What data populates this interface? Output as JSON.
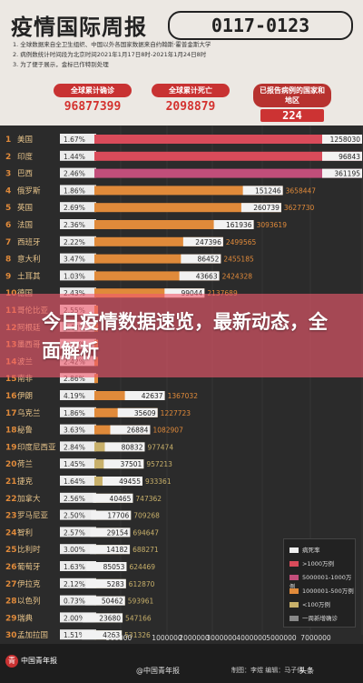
{
  "header": {
    "title": "疫情国际周报",
    "date_range": "0117-0123",
    "notes": [
      "1. 全球数据来自全卫生组织、中国以外各国家数据来自约翰斯·霍普金斯大学",
      "2. 病例数统计时间段为北京时间2021年1月17日8时-2021年1月24日8时",
      "3. 为了便于展示，金标已作特别处理"
    ]
  },
  "stats": [
    {
      "label": "全球累计确诊",
      "value": "96877399"
    },
    {
      "label": "全球累计死亡",
      "value": "2098879"
    },
    {
      "label": "已报告病例的国家和地区",
      "value": "224"
    }
  ],
  "overlay": {
    "headline": "今日疫情数据速览，最新动态，全面解析"
  },
  "legend": {
    "items": [
      {
        "label": "病死率",
        "color": "#eeeeee"
      },
      {
        "label": ">1000万例",
        "color": "#d94b5a"
      },
      {
        "label": "5000001-1000万例",
        "color": "#c14e7a"
      },
      {
        "label": "1000001-500万例",
        "color": "#e08a3a"
      },
      {
        "label": "<100万例",
        "color": "#c8b06a"
      },
      {
        "label": "一周新增确诊",
        "color": "#888888"
      }
    ]
  },
  "footer": {
    "logo_text": "中国青年报",
    "credit": "@中国青年报",
    "creator": "制图：李煜  编辑：马子倩",
    "channel": "头条"
  },
  "chart_data": {
    "type": "bar",
    "x_ticks": [
      "500000",
      "1000000",
      "2000000",
      "3000000",
      "4000000",
      "5000000",
      "7000000"
    ],
    "series_names": [
      "病死率",
      "一周新增确诊",
      "累计确诊"
    ],
    "rows": [
      {
        "rank": "1",
        "country": "美国",
        "fatality": "1.67%",
        "new_week": 1258030,
        "total": 24982615,
        "tier": "gt10m"
      },
      {
        "rank": "2",
        "country": "印度",
        "fatality": "1.44%",
        "new_week": 96843,
        "total": 10639684,
        "tier": "gt10m"
      },
      {
        "rank": "3",
        "country": "巴西",
        "fatality": "2.46%",
        "new_week": 361195,
        "total": 8816254,
        "tier": "5to10m"
      },
      {
        "rank": "4",
        "country": "俄罗斯",
        "fatality": "1.86%",
        "new_week": 151246,
        "total": 3658447,
        "tier": "1to5m"
      },
      {
        "rank": "5",
        "country": "英国",
        "fatality": "2.69%",
        "new_week": 260739,
        "total": 3627730,
        "tier": "1to5m"
      },
      {
        "rank": "6",
        "country": "法国",
        "fatality": "2.36%",
        "new_week": 161936,
        "total": 3093619,
        "tier": "1to5m"
      },
      {
        "rank": "7",
        "country": "西班牙",
        "fatality": "2.22%",
        "new_week": 247396,
        "total": 2499565,
        "tier": "1to5m"
      },
      {
        "rank": "8",
        "country": "意大利",
        "fatality": "3.47%",
        "new_week": 86452,
        "total": 2455185,
        "tier": "1to5m"
      },
      {
        "rank": "9",
        "country": "土耳其",
        "fatality": "1.03%",
        "new_week": 43663,
        "total": 2424328,
        "tier": "1to5m"
      },
      {
        "rank": "10",
        "country": "德国",
        "fatality": "2.43%",
        "new_week": 99044,
        "total": 2137689,
        "tier": "1to5m"
      },
      {
        "rank": "11",
        "country": "哥伦比亚",
        "fatality": "2.55%",
        "new_week": 0,
        "total": 0,
        "tier": "1to5m"
      },
      {
        "rank": "12",
        "country": "阿根廷",
        "fatality": "2.48%",
        "new_week": 0,
        "total": 0,
        "tier": "1to5m"
      },
      {
        "rank": "13",
        "country": "墨西哥",
        "fatality": "8.52%",
        "new_week": 0,
        "total": 0,
        "tier": "1to5m"
      },
      {
        "rank": "14",
        "country": "波兰",
        "fatality": "2.42%",
        "new_week": 0,
        "total": 0,
        "tier": "1to5m"
      },
      {
        "rank": "15",
        "country": "南非",
        "fatality": "2.86%",
        "new_week": 0,
        "total": 0,
        "tier": "1to5m"
      },
      {
        "rank": "16",
        "country": "伊朗",
        "fatality": "4.19%",
        "new_week": 42637,
        "total": 1367032,
        "tier": "1to5m"
      },
      {
        "rank": "17",
        "country": "乌克兰",
        "fatality": "1.86%",
        "new_week": 35609,
        "total": 1227723,
        "tier": "1to5m"
      },
      {
        "rank": "18",
        "country": "秘鲁",
        "fatality": "3.63%",
        "new_week": 26884,
        "total": 1082907,
        "tier": "1to5m"
      },
      {
        "rank": "19",
        "country": "印度尼西亚",
        "fatality": "2.84%",
        "new_week": 80832,
        "total": 977474,
        "tier": "lt1m"
      },
      {
        "rank": "20",
        "country": "荷兰",
        "fatality": "1.45%",
        "new_week": 37501,
        "total": 957213,
        "tier": "lt1m"
      },
      {
        "rank": "21",
        "country": "捷克",
        "fatality": "1.64%",
        "new_week": 49455,
        "total": 933361,
        "tier": "lt1m"
      },
      {
        "rank": "22",
        "country": "加拿大",
        "fatality": "2.56%",
        "new_week": 40465,
        "total": 747362,
        "tier": "lt1m"
      },
      {
        "rank": "23",
        "country": "罗马尼亚",
        "fatality": "2.50%",
        "new_week": 17706,
        "total": 709268,
        "tier": "lt1m"
      },
      {
        "rank": "24",
        "country": "智利",
        "fatality": "2.57%",
        "new_week": 29154,
        "total": 694647,
        "tier": "lt1m"
      },
      {
        "rank": "25",
        "country": "比利时",
        "fatality": "3.00%",
        "new_week": 14182,
        "total": 688271,
        "tier": "lt1m"
      },
      {
        "rank": "26",
        "country": "葡萄牙",
        "fatality": "1.63%",
        "new_week": 85053,
        "total": 624469,
        "tier": "lt1m"
      },
      {
        "rank": "27",
        "country": "伊拉克",
        "fatality": "2.12%",
        "new_week": 5283,
        "total": 612870,
        "tier": "lt1m"
      },
      {
        "rank": "28",
        "country": "以色列",
        "fatality": "0.73%",
        "new_week": 50462,
        "total": 593961,
        "tier": "lt1m"
      },
      {
        "rank": "29",
        "country": "瑞典",
        "fatality": "2.00%",
        "new_week": 23680,
        "total": 547166,
        "tier": "lt1m"
      },
      {
        "rank": "30",
        "country": "孟加拉国",
        "fatality": "1.51%",
        "new_week": 4263,
        "total": 531326,
        "tier": "lt1m"
      }
    ],
    "tier_colors": {
      "gt10m": "#d94b5a",
      "5to10m": "#c14e7a",
      "1to5m": "#e08a3a",
      "lt1m": "#c8b06a"
    }
  }
}
